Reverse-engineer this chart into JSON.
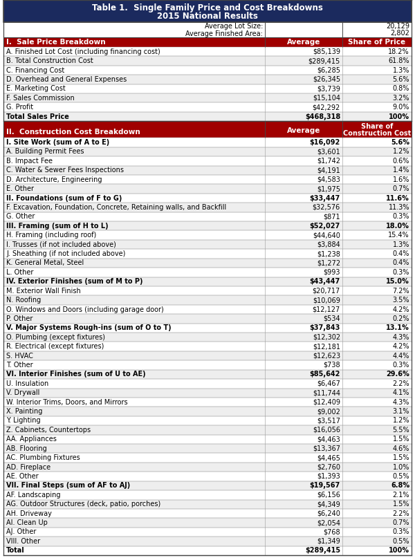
{
  "title_line1": "Table 1.  Single Family Price and Cost Breakdowns",
  "title_line2": "2015 National Results",
  "header_bg": "#1b2a5e",
  "header_text": "#ffffff",
  "section_header_bg": "#a00000",
  "section_header_text": "#ffffff",
  "avg_lot_size": "20,129",
  "avg_finished_area": "2,802",
  "border_color": "#444444",
  "alt_row_bg": "#eeeeee",
  "white": "#ffffff",
  "sale_price_rows": [
    [
      "A. Finished Lot Cost (including financing cost)",
      "$85,139",
      "18.2%",
      false
    ],
    [
      "B. Total Construction Cost",
      "$289,415",
      "61.8%",
      false
    ],
    [
      "C. Financing Cost",
      "$6,285",
      "1.3%",
      false
    ],
    [
      "D. Overhead and General Expenses",
      "$26,345",
      "5.6%",
      false
    ],
    [
      "E. Marketing Cost",
      "$3,739",
      "0.8%",
      false
    ],
    [
      "F. Sales Commission",
      "$15,104",
      "3.2%",
      false
    ],
    [
      "G. Profit",
      "$42,292",
      "9.0%",
      false
    ],
    [
      "Total Sales Price",
      "$468,318",
      "100%",
      true
    ]
  ],
  "construction_rows": [
    [
      "I. Site Work (sum of A to E)",
      "$16,092",
      "5.6%",
      true
    ],
    [
      "A. Building Permit Fees",
      "$3,601",
      "1.2%",
      false
    ],
    [
      "B. Impact Fee",
      "$1,742",
      "0.6%",
      false
    ],
    [
      "C. Water & Sewer Fees Inspections",
      "$4,191",
      "1.4%",
      false
    ],
    [
      "D. Architecture, Engineering",
      "$4,583",
      "1.6%",
      false
    ],
    [
      "E. Other",
      "$1,975",
      "0.7%",
      false
    ],
    [
      "II. Foundations (sum of F to G)",
      "$33,447",
      "11.6%",
      true
    ],
    [
      "F. Excavation, Foundation, Concrete, Retaining walls, and Backfill",
      "$32,576",
      "11.3%",
      false
    ],
    [
      "G. Other",
      "$871",
      "0.3%",
      false
    ],
    [
      "III. Framing (sum of H to L)",
      "$52,027",
      "18.0%",
      true
    ],
    [
      "H. Framing (including roof)",
      "$44,640",
      "15.4%",
      false
    ],
    [
      "I. Trusses (if not included above)",
      "$3,884",
      "1.3%",
      false
    ],
    [
      "J. Sheathing (if not included above)",
      "$1,238",
      "0.4%",
      false
    ],
    [
      "K. General Metal, Steel",
      "$1,272",
      "0.4%",
      false
    ],
    [
      "L. Other",
      "$993",
      "0.3%",
      false
    ],
    [
      "IV. Exterior Finishes (sum of M to P)",
      "$43,447",
      "15.0%",
      true
    ],
    [
      "M. Exterior Wall Finish",
      "$20,717",
      "7.2%",
      false
    ],
    [
      "N. Roofing",
      "$10,069",
      "3.5%",
      false
    ],
    [
      "O. Windows and Doors (including garage door)",
      "$12,127",
      "4.2%",
      false
    ],
    [
      "P. Other",
      "$534",
      "0.2%",
      false
    ],
    [
      "V. Major Systems Rough-ins (sum of O to T)",
      "$37,843",
      "13.1%",
      true
    ],
    [
      "O. Plumbing (except fixtures)",
      "$12,302",
      "4.3%",
      false
    ],
    [
      "R. Electrical (except fixtures)",
      "$12,181",
      "4.2%",
      false
    ],
    [
      "S. HVAC",
      "$12,623",
      "4.4%",
      false
    ],
    [
      "T. Other",
      "$738",
      "0.3%",
      false
    ],
    [
      "VI. Interior Finishes (sum of U to AE)",
      "$85,642",
      "29.6%",
      true
    ],
    [
      "U. Insulation",
      "$6,467",
      "2.2%",
      false
    ],
    [
      "V. Drywall",
      "$11,744",
      "4.1%",
      false
    ],
    [
      "W. Interior Trims, Doors, and Mirrors",
      "$12,409",
      "4.3%",
      false
    ],
    [
      "X. Painting",
      "$9,002",
      "3.1%",
      false
    ],
    [
      "Y. Lighting",
      "$3,517",
      "1.2%",
      false
    ],
    [
      "Z. Cabinets, Countertops",
      "$16,056",
      "5.5%",
      false
    ],
    [
      "AA. Appliances",
      "$4,463",
      "1.5%",
      false
    ],
    [
      "AB. Flooring",
      "$13,367",
      "4.6%",
      false
    ],
    [
      "AC. Plumbing Fixtures",
      "$4,465",
      "1.5%",
      false
    ],
    [
      "AD. Fireplace",
      "$2,760",
      "1.0%",
      false
    ],
    [
      "AE. Other",
      "$1,393",
      "0.5%",
      false
    ],
    [
      "VII. Final Steps (sum of AF to AJ)",
      "$19,567",
      "6.8%",
      true
    ],
    [
      "AF. Landscaping",
      "$6,156",
      "2.1%",
      false
    ],
    [
      "AG. Outdoor Structures (deck, patio, porches)",
      "$4,349",
      "1.5%",
      false
    ],
    [
      "AH. Driveway",
      "$6,240",
      "2.2%",
      false
    ],
    [
      "AI. Clean Up",
      "$2,054",
      "0.7%",
      false
    ],
    [
      "AJ. Other",
      "$768",
      "0.3%",
      false
    ],
    [
      "VIII. Other",
      "$1,349",
      "0.5%",
      false
    ],
    [
      "Total",
      "$289,415",
      "100%",
      true
    ]
  ]
}
